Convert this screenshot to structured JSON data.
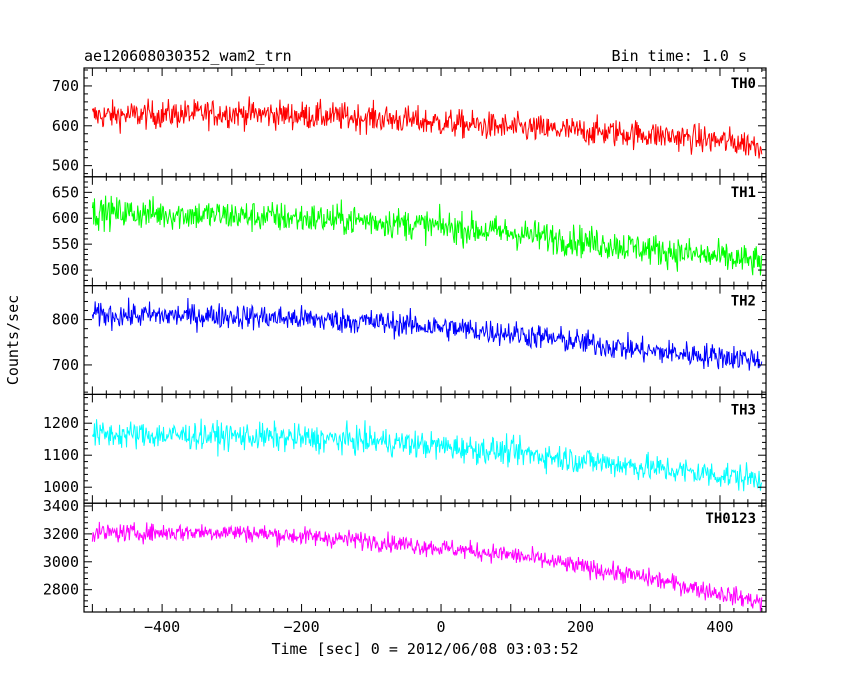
{
  "header": {
    "title": "ae120608030352_wam2_trn",
    "bin_time": "Bin time: 1.0 s"
  },
  "chart_data": {
    "type": "line",
    "xlabel": "Time [sec] 0 = 2012/06/08 03:03:52",
    "ylabel": "Counts/sec",
    "xlim": [
      -512,
      466
    ],
    "x_data_range": [
      -500,
      460
    ],
    "x_ticks": [
      -400,
      -200,
      0,
      200,
      400
    ],
    "x_tick_labels": [
      "−400",
      "−200",
      "0",
      "200",
      "400"
    ],
    "bin_seconds": 1.0,
    "grid": false,
    "panels": [
      {
        "name": "TH0",
        "color": "#ff0000",
        "ylim": [
          472,
          745
        ],
        "y_ticks": [
          500,
          600,
          700
        ],
        "trend_points": [
          [
            -500,
            625
          ],
          [
            -300,
            632
          ],
          [
            -100,
            620
          ],
          [
            100,
            595
          ],
          [
            300,
            578
          ],
          [
            460,
            552
          ]
        ],
        "noise_amplitude": 70
      },
      {
        "name": "TH1",
        "color": "#00ff00",
        "ylim": [
          470,
          680
        ],
        "y_ticks": [
          500,
          550,
          600,
          650
        ],
        "trend_points": [
          [
            -500,
            612
          ],
          [
            -300,
            605
          ],
          [
            -100,
            595
          ],
          [
            100,
            572
          ],
          [
            300,
            540
          ],
          [
            460,
            515
          ]
        ],
        "noise_amplitude": 60
      },
      {
        "name": "TH2",
        "color": "#0000ff",
        "ylim": [
          635,
          875
        ],
        "y_ticks": [
          700,
          800
        ],
        "trend_points": [
          [
            -500,
            810
          ],
          [
            -300,
            808
          ],
          [
            -100,
            795
          ],
          [
            100,
            770
          ],
          [
            300,
            730
          ],
          [
            460,
            712
          ]
        ],
        "noise_amplitude": 55
      },
      {
        "name": "TH3",
        "color": "#00ffff",
        "ylim": [
          950,
          1290
        ],
        "y_ticks": [
          1000,
          1100,
          1200
        ],
        "trend_points": [
          [
            -500,
            1165
          ],
          [
            -300,
            1160
          ],
          [
            -100,
            1145
          ],
          [
            100,
            1110
          ],
          [
            300,
            1060
          ],
          [
            460,
            1025
          ]
        ],
        "noise_amplitude": 85
      },
      {
        "name": "TH0123",
        "color": "#ff00ff",
        "ylim": [
          2640,
          3420
        ],
        "y_ticks": [
          2800,
          3000,
          3200,
          3400
        ],
        "trend_points": [
          [
            -500,
            3205
          ],
          [
            -300,
            3215
          ],
          [
            -100,
            3150
          ],
          [
            100,
            3050
          ],
          [
            300,
            2880
          ],
          [
            460,
            2710
          ]
        ],
        "noise_amplitude": 130
      }
    ]
  }
}
